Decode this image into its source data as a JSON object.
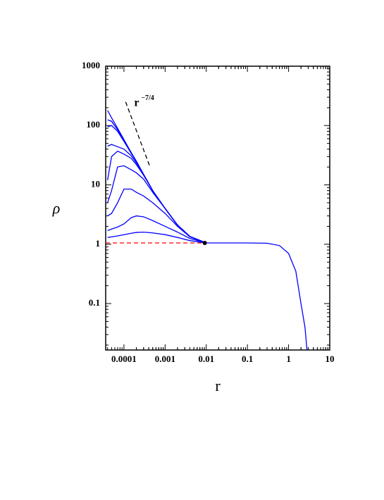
{
  "chart_data": {
    "type": "line",
    "x_label": "r",
    "y_label": "ρ",
    "xscale": "log",
    "yscale": "log",
    "xlim": [
      3.6e-05,
      10
    ],
    "ylim": [
      0.0165,
      1000
    ],
    "xticks": [
      0.0001,
      0.001,
      0.01,
      0.1,
      1,
      10
    ],
    "yticks": [
      0.1,
      1,
      10,
      100,
      1000
    ],
    "color": "#0000ff",
    "x": [
      4e-05,
      5e-05,
      7e-05,
      0.0001,
      0.00015,
      0.0002,
      0.0003,
      0.0005,
      0.001,
      0.002,
      0.004,
      0.01,
      0.1,
      0.3,
      0.6,
      1,
      1.5,
      2,
      2.5,
      2.8
    ],
    "series": [
      {
        "values": [
          180,
          135,
          90,
          58,
          35,
          25,
          15,
          8,
          4,
          2.1,
          1.35,
          1.05,
          1.05,
          1.04,
          0.95,
          0.7,
          0.35,
          0.1,
          0.04,
          0.0165
        ]
      },
      {
        "values": [
          125,
          118,
          85,
          56,
          35,
          25,
          15,
          8,
          4,
          2.1,
          1.35,
          1.05,
          null,
          null,
          null,
          null,
          null,
          null,
          null,
          null
        ]
      },
      {
        "values": [
          95,
          100,
          80,
          54,
          34,
          25,
          15,
          8,
          4,
          2.1,
          1.35,
          1.05,
          null,
          null,
          null,
          null,
          null,
          null,
          null,
          null
        ]
      },
      {
        "values": [
          45,
          48,
          44,
          40,
          31,
          23.5,
          15,
          8,
          4,
          2.1,
          1.35,
          1.05,
          null,
          null,
          null,
          null,
          null,
          null,
          null,
          null
        ]
      },
      {
        "values": [
          12,
          30,
          37,
          33,
          28,
          22,
          14.5,
          8,
          4,
          2.1,
          1.35,
          1.05,
          null,
          null,
          null,
          null,
          null,
          null,
          null,
          null
        ]
      },
      {
        "values": [
          5,
          8,
          20,
          21,
          18,
          16,
          12.5,
          7.5,
          4,
          2.1,
          1.35,
          1.05,
          null,
          null,
          null,
          null,
          null,
          null,
          null,
          null
        ]
      },
      {
        "values": [
          3,
          3.3,
          5,
          8.5,
          8.5,
          7.5,
          6.5,
          5,
          3.3,
          2,
          1.33,
          1.05,
          null,
          null,
          null,
          null,
          null,
          null,
          null,
          null
        ]
      },
      {
        "values": [
          1.7,
          1.8,
          1.95,
          2.2,
          2.8,
          3,
          2.9,
          2.5,
          2,
          1.6,
          1.25,
          1.05,
          null,
          null,
          null,
          null,
          null,
          null,
          null,
          null
        ]
      },
      {
        "values": [
          1.3,
          1.33,
          1.38,
          1.45,
          1.53,
          1.58,
          1.6,
          1.55,
          1.45,
          1.3,
          1.15,
          1.05,
          null,
          null,
          null,
          null,
          null,
          null,
          null,
          null
        ]
      }
    ],
    "baseline": {
      "x": [
        3.6e-05,
        0.0092
      ],
      "values": [
        1.05,
        1.05
      ],
      "color": "#ff0000"
    },
    "point": {
      "x": 0.0092,
      "value": 1.05,
      "color": "#000000"
    },
    "reference_line": {
      "x": [
        0.00011,
        0.00043
      ],
      "values": [
        250,
        20
      ],
      "color": "#000000",
      "label": {
        "text": "r",
        "superscript": "−7/4"
      }
    }
  }
}
